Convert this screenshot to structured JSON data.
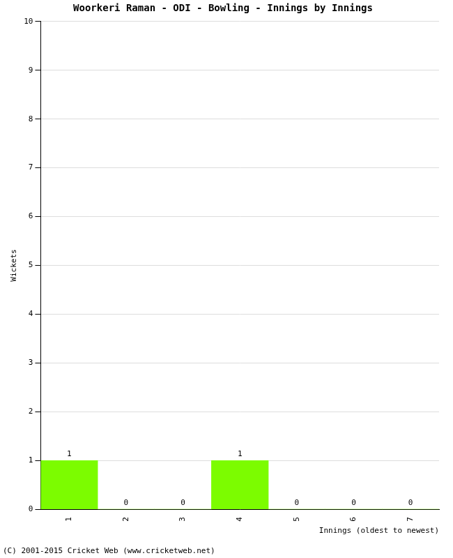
{
  "chart_data": {
    "type": "bar",
    "title": "Woorkeri Raman - ODI - Bowling - Innings by Innings",
    "x_label": "Innings (oldest to newest)",
    "y_label": "Wickets",
    "categories": [
      "1",
      "2",
      "3",
      "4",
      "5",
      "6",
      "7"
    ],
    "values": [
      1,
      0,
      0,
      1,
      0,
      0,
      0
    ],
    "color": "#7cfc00",
    "ylim": [
      0,
      10
    ],
    "yticks": [
      0,
      1,
      2,
      3,
      4,
      5,
      6,
      7,
      8,
      9,
      10
    ],
    "grid": true,
    "data_labels": true,
    "annotations": [
      "(C) 2001-2015 Cricket Web (www.cricketweb.net)"
    ]
  }
}
